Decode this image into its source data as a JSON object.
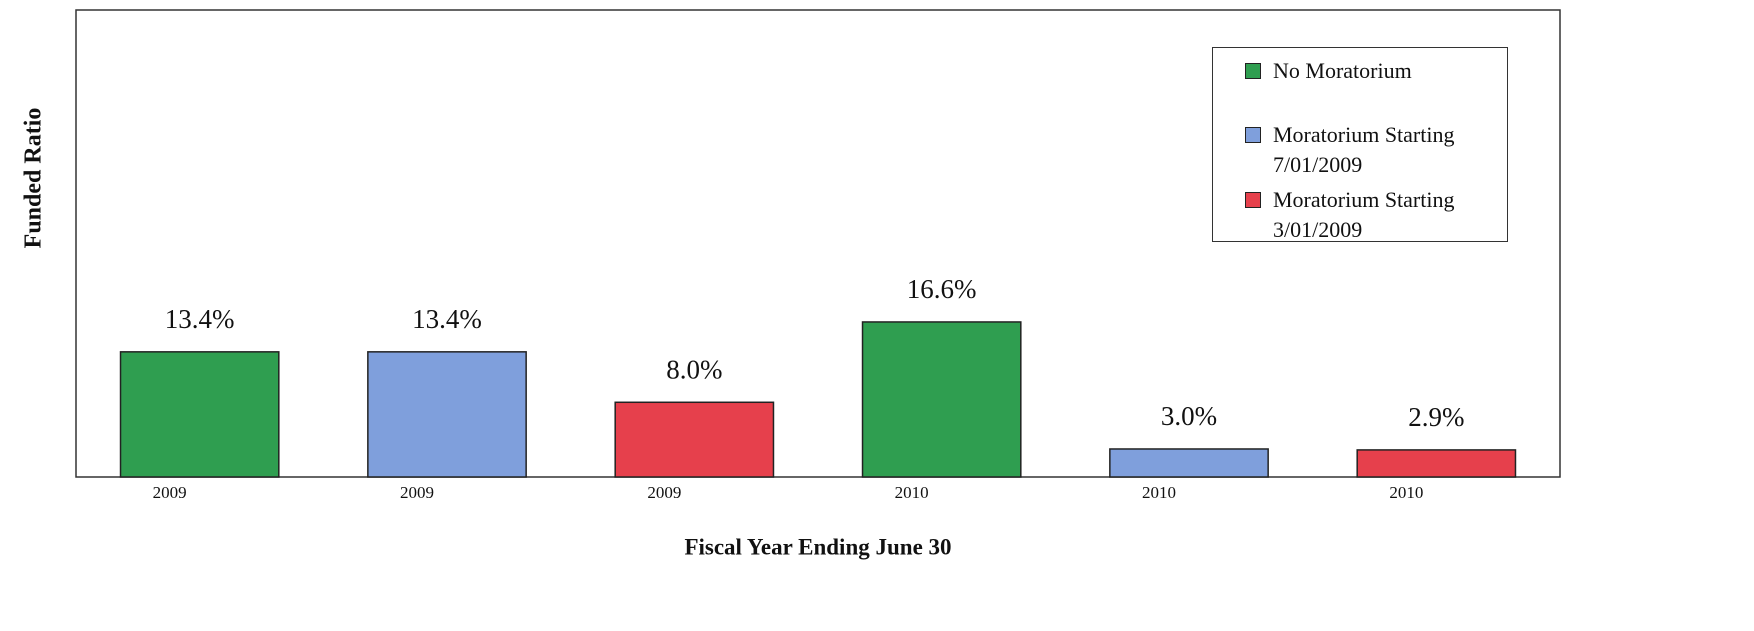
{
  "chart_data": {
    "type": "bar",
    "y_label": "Funded Ratio",
    "x_label": "Fiscal Year Ending June 30",
    "categories": [
      "2009",
      "2009",
      "2009",
      "2010",
      "2010",
      "2010"
    ],
    "series": [
      {
        "name": "No Moratorium",
        "color": "#2f9e50",
        "values": [
          13.4,
          null,
          null,
          16.6,
          null,
          null
        ],
        "value_labels": [
          "13.4%",
          null,
          null,
          "16.6%",
          null,
          null
        ]
      },
      {
        "name": "Moratorium Starting 7/01/2009",
        "color": "#7f9fdc",
        "values": [
          null,
          13.4,
          null,
          null,
          3.0,
          null
        ],
        "value_labels": [
          null,
          "13.4%",
          null,
          null,
          "3.0%",
          null
        ]
      },
      {
        "name": "Moratorium Starting 3/01/2009",
        "color": "#e6404c",
        "values": [
          null,
          null,
          8.0,
          null,
          null,
          2.9
        ],
        "value_labels": [
          null,
          null,
          "8.0%",
          null,
          null,
          "2.9%"
        ]
      }
    ],
    "ylim": [
      0,
      50
    ],
    "legend": "top-right"
  }
}
